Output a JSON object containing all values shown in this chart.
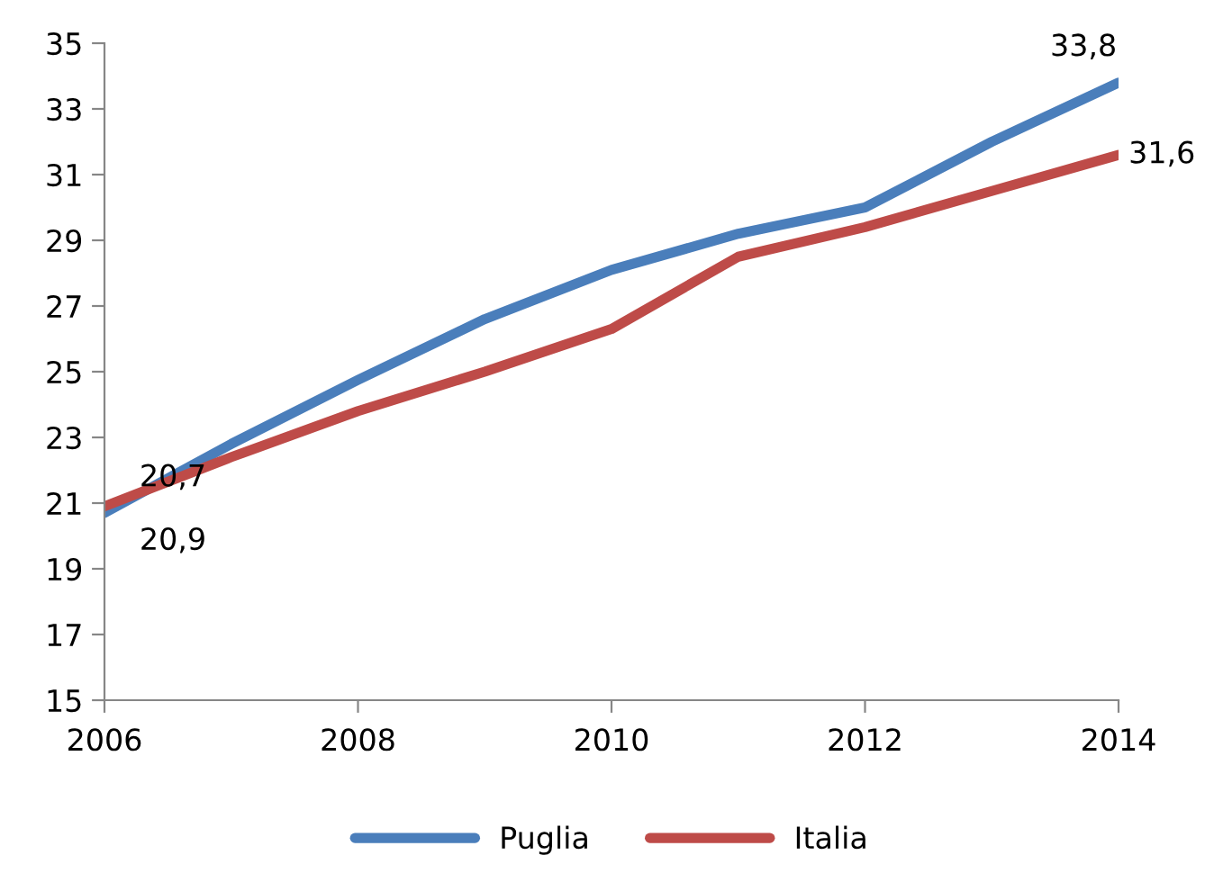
{
  "chart_data": {
    "type": "line",
    "x": [
      2006,
      2007,
      2008,
      2009,
      2010,
      2011,
      2012,
      2013,
      2014
    ],
    "series": [
      {
        "name": "Puglia",
        "color": "#4a7ebb",
        "values": [
          20.7,
          22.8,
          24.75,
          26.6,
          28.1,
          29.2,
          30.0,
          32.0,
          33.8
        ],
        "value_labels": [
          "20,7",
          null,
          null,
          null,
          null,
          null,
          null,
          null,
          "33,8"
        ]
      },
      {
        "name": "Italia",
        "color": "#be4b48",
        "values": [
          20.9,
          22.4,
          23.8,
          25.0,
          26.3,
          28.5,
          29.4,
          30.5,
          31.6
        ],
        "value_labels": [
          "20,9",
          null,
          null,
          null,
          null,
          null,
          null,
          null,
          "31,6"
        ]
      }
    ],
    "xlim": [
      2006,
      2014
    ],
    "xticks": [
      2006,
      2008,
      2010,
      2012,
      2014
    ],
    "ylim": [
      15,
      35
    ],
    "yticks": [
      15,
      17,
      19,
      21,
      23,
      25,
      27,
      29,
      31,
      33,
      35
    ],
    "grid": false,
    "legend": "bottom",
    "marker": "none",
    "line_style": "solid"
  }
}
